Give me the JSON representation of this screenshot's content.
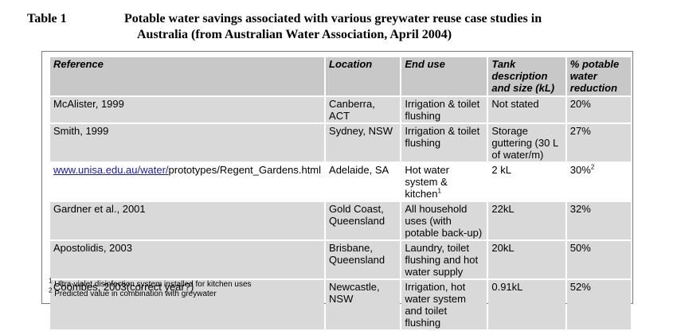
{
  "caption": {
    "number": "Table 1",
    "title_line1": "Potable water savings associated with various greywater reuse case studies in",
    "title_line2": "Australia (from Australian Water Association, April 2004)"
  },
  "table": {
    "headers": [
      "Reference",
      "Location",
      "End use",
      "Tank description and size (kL)",
      "% potable water reduction"
    ],
    "rows": [
      {
        "reference": "McAlister, 1999",
        "location": "Canberra, ACT",
        "end_use": "Irrigation & toilet flushing",
        "tank": "Not stated",
        "reduction": "20%"
      },
      {
        "reference": "Smith, 1999",
        "location": "Sydney, NSW",
        "end_use": "Irrigation & toilet flushing",
        "tank": "Storage guttering (30 L of water/m)",
        "reduction": "27%"
      },
      {
        "reference_link": "www.unisa.edu.au/water/",
        "reference_rest": "prototypes/Regent_Gardens.html",
        "location": "Adelaide, SA",
        "end_use": "Hot water system & kitchen",
        "end_use_sup": "1",
        "tank": "2 kL",
        "reduction": "30%",
        "reduction_sup": "2"
      },
      {
        "reference": "Gardner et al., 2001",
        "location": "Gold Coast, Queensland",
        "end_use": "All household uses (with potable back-up)",
        "tank": "22kL",
        "reduction": "32%"
      },
      {
        "reference": "Apostolidis, 2003",
        "location": "Brisbane, Queensland",
        "end_use": "Laundry, toilet flushing and hot water supply",
        "tank": "20kL",
        "reduction": "50%"
      },
      {
        "reference": "Coombes, 2003(correct year?)",
        "location": "Newcastle, NSW",
        "end_use": "Irrigation, hot water system and toilet flushing",
        "tank": "0.91kL",
        "reduction": "52%"
      }
    ]
  },
  "notes": [
    {
      "marker": "1",
      "text": "Ultra-violet disinfection system installed for kitchen uses"
    },
    {
      "marker": "2",
      "text": "Predicted value in combination with greywater"
    }
  ]
}
